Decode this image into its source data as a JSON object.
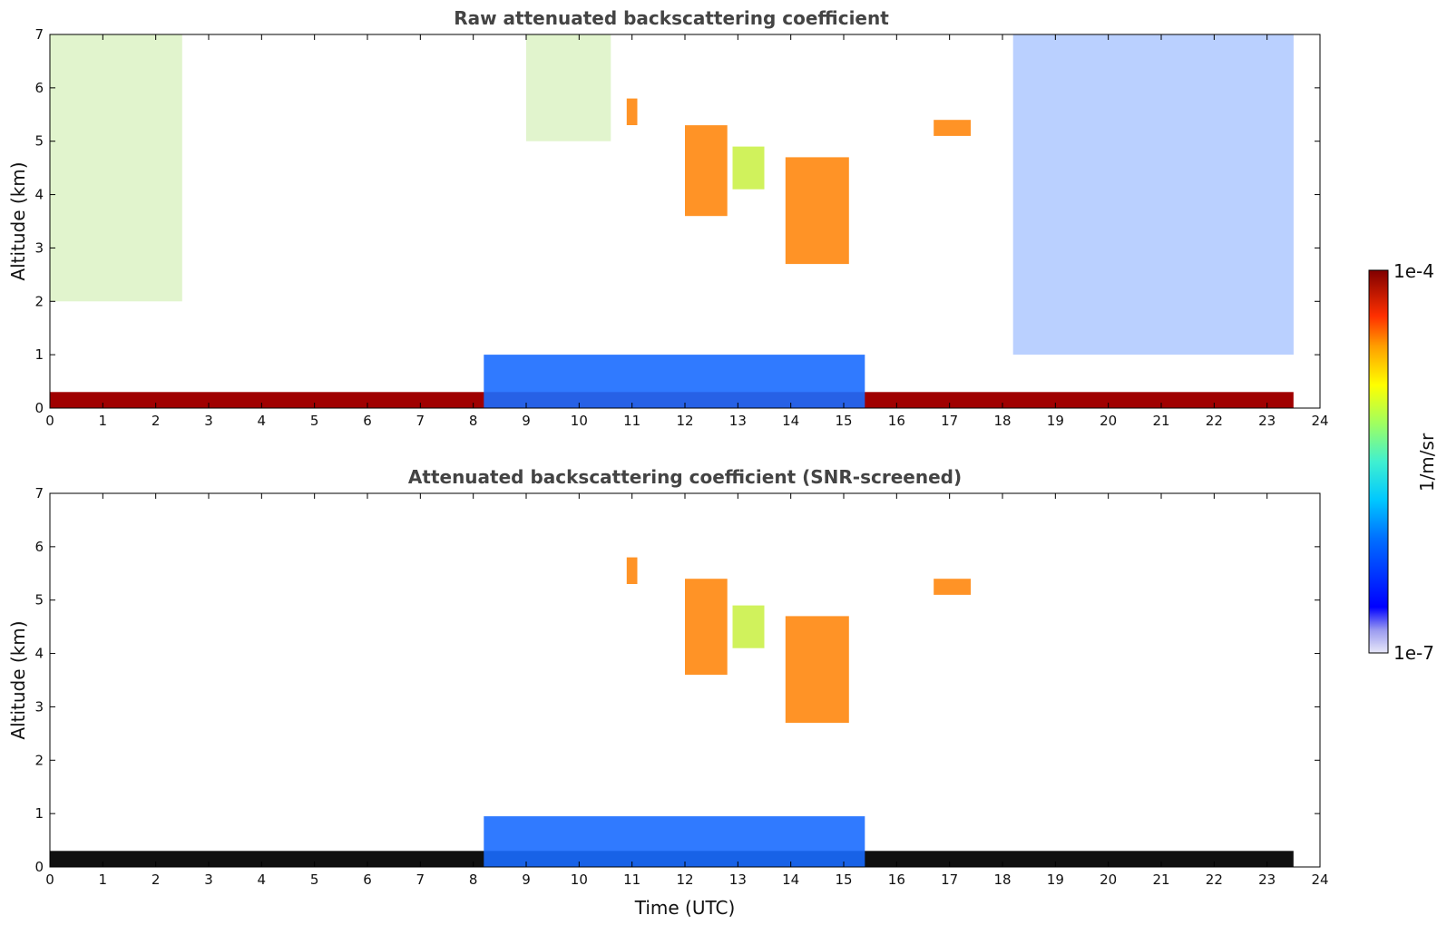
{
  "chart_data": [
    {
      "type": "heatmap",
      "title": "Raw attenuated backscattering coefficient",
      "xlabel": "",
      "ylabel": "Altitude (km)",
      "xlim": [
        0,
        24
      ],
      "ylim": [
        0,
        7
      ],
      "x_ticks": [
        0,
        1,
        2,
        3,
        4,
        5,
        6,
        7,
        8,
        9,
        10,
        11,
        12,
        13,
        14,
        15,
        16,
        17,
        18,
        19,
        20,
        21,
        22,
        23,
        24
      ],
      "y_ticks": [
        0,
        1,
        2,
        3,
        4,
        5,
        6,
        7
      ],
      "data_extent_hours": [
        0,
        23.5
      ],
      "features": [
        {
          "kind": "surface-layer",
          "x": [
            0,
            23.5
          ],
          "y": [
            0,
            0.3
          ],
          "level": "high"
        },
        {
          "kind": "boundary-layer",
          "x": [
            8.2,
            15.4
          ],
          "y": [
            0,
            1.0
          ],
          "level": "low"
        },
        {
          "kind": "cloud",
          "x": [
            10.9,
            11.1
          ],
          "y": [
            5.3,
            5.8
          ],
          "level": "high"
        },
        {
          "kind": "cloud",
          "x": [
            12.0,
            12.8
          ],
          "y": [
            3.6,
            5.3
          ],
          "level": "high"
        },
        {
          "kind": "cloud",
          "x": [
            12.9,
            13.5
          ],
          "y": [
            4.1,
            4.9
          ],
          "level": "medium"
        },
        {
          "kind": "cloud",
          "x": [
            13.9,
            15.1
          ],
          "y": [
            2.7,
            4.7
          ],
          "level": "high"
        },
        {
          "kind": "cloud",
          "x": [
            16.7,
            17.4
          ],
          "y": [
            5.1,
            5.4
          ],
          "level": "high"
        },
        {
          "kind": "noise-region",
          "x": [
            0,
            2.5
          ],
          "y": [
            2.0,
            7.0
          ],
          "level": "medium"
        },
        {
          "kind": "noise-region",
          "x": [
            9.0,
            10.6
          ],
          "y": [
            5.0,
            7.0
          ],
          "level": "medium"
        },
        {
          "kind": "noise-region",
          "x": [
            18.2,
            23.5
          ],
          "y": [
            1.0,
            7.0
          ],
          "level": "low"
        }
      ]
    },
    {
      "type": "heatmap",
      "title": "Attenuated backscattering coefficient (SNR-screened)",
      "xlabel": "Time (UTC)",
      "ylabel": "Altitude (km)",
      "xlim": [
        0,
        24
      ],
      "ylim": [
        0,
        7
      ],
      "x_ticks": [
        0,
        1,
        2,
        3,
        4,
        5,
        6,
        7,
        8,
        9,
        10,
        11,
        12,
        13,
        14,
        15,
        16,
        17,
        18,
        19,
        20,
        21,
        22,
        23,
        24
      ],
      "y_ticks": [
        0,
        1,
        2,
        3,
        4,
        5,
        6,
        7
      ],
      "data_extent_hours": [
        0,
        23.5
      ],
      "features": [
        {
          "kind": "surface-layer",
          "x": [
            0,
            23.5
          ],
          "y": [
            0,
            0.3
          ],
          "level": "saturated"
        },
        {
          "kind": "boundary-layer",
          "x": [
            8.2,
            15.4
          ],
          "y": [
            0,
            0.95
          ],
          "level": "low"
        },
        {
          "kind": "cloud",
          "x": [
            10.9,
            11.1
          ],
          "y": [
            5.3,
            5.8
          ],
          "level": "high"
        },
        {
          "kind": "cloud",
          "x": [
            12.0,
            12.8
          ],
          "y": [
            3.6,
            5.4
          ],
          "level": "high"
        },
        {
          "kind": "cloud",
          "x": [
            12.9,
            13.5
          ],
          "y": [
            4.1,
            4.9
          ],
          "level": "medium"
        },
        {
          "kind": "cloud",
          "x": [
            13.9,
            15.1
          ],
          "y": [
            2.7,
            4.7
          ],
          "level": "high"
        },
        {
          "kind": "cloud",
          "x": [
            16.7,
            17.4
          ],
          "y": [
            5.1,
            5.4
          ],
          "level": "high"
        }
      ]
    }
  ],
  "colorbar": {
    "label": "1/m/sr",
    "max_label": "1e-4",
    "min_label": "1e-7",
    "colormap": "jet"
  }
}
